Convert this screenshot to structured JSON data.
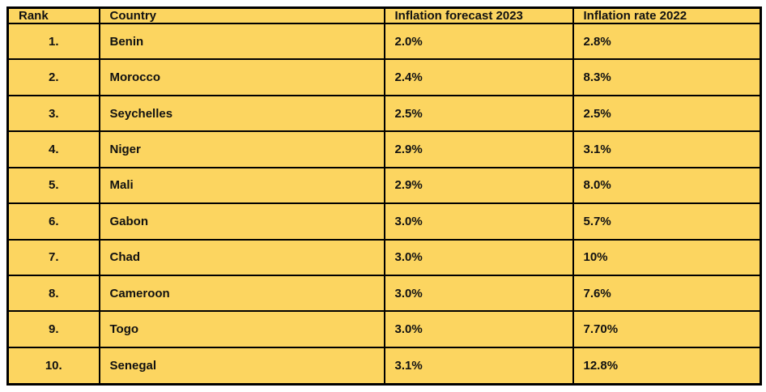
{
  "colors": {
    "cell_background": "#FCD560",
    "border": "#000000",
    "text": "#111111",
    "page_background": "#FFFFFF"
  },
  "table": {
    "columns": [
      {
        "key": "rank",
        "label": "Rank"
      },
      {
        "key": "country",
        "label": "Country"
      },
      {
        "key": "forecast2023",
        "label": "Inflation forecast 2023"
      },
      {
        "key": "rate2022",
        "label": "Inflation rate 2022"
      }
    ],
    "rows": [
      {
        "rank": "1.",
        "country": "Benin",
        "forecast2023": "2.0%",
        "rate2022": "2.8%"
      },
      {
        "rank": "2.",
        "country": "Morocco",
        "forecast2023": "2.4%",
        "rate2022": "8.3%"
      },
      {
        "rank": "3.",
        "country": "Seychelles",
        "forecast2023": "2.5%",
        "rate2022": "2.5%"
      },
      {
        "rank": "4.",
        "country": "Niger",
        "forecast2023": "2.9%",
        "rate2022": "3.1%"
      },
      {
        "rank": "5.",
        "country": "Mali",
        "forecast2023": "2.9%",
        "rate2022": "8.0%"
      },
      {
        "rank": "6.",
        "country": "Gabon",
        "forecast2023": "3.0%",
        "rate2022": "5.7%"
      },
      {
        "rank": "7.",
        "country": "Chad",
        "forecast2023": "3.0%",
        "rate2022": "10%"
      },
      {
        "rank": "8.",
        "country": "Cameroon",
        "forecast2023": "3.0%",
        "rate2022": "7.6%"
      },
      {
        "rank": "9.",
        "country": "Togo",
        "forecast2023": "3.0%",
        "rate2022": "7.70%"
      },
      {
        "rank": "10.",
        "country": "Senegal",
        "forecast2023": "3.1%",
        "rate2022": "12.8%"
      }
    ]
  },
  "chart_data": {
    "type": "table",
    "title": "",
    "columns": [
      "Rank",
      "Country",
      "Inflation forecast 2023",
      "Inflation rate 2022"
    ],
    "rows": [
      [
        "1.",
        "Benin",
        "2.0%",
        "2.8%"
      ],
      [
        "2.",
        "Morocco",
        "2.4%",
        "8.3%"
      ],
      [
        "3.",
        "Seychelles",
        "2.5%",
        "2.5%"
      ],
      [
        "4.",
        "Niger",
        "2.9%",
        "3.1%"
      ],
      [
        "5.",
        "Mali",
        "2.9%",
        "8.0%"
      ],
      [
        "6.",
        "Gabon",
        "3.0%",
        "5.7%"
      ],
      [
        "7.",
        "Chad",
        "3.0%",
        "10%"
      ],
      [
        "8.",
        "Cameroon",
        "3.0%",
        "7.6%"
      ],
      [
        "9.",
        "Togo",
        "3.0%",
        "7.70%"
      ],
      [
        "10.",
        "Senegal",
        "3.1%",
        "12.8%"
      ]
    ],
    "series": [
      {
        "name": "Inflation forecast 2023",
        "values": [
          2.0,
          2.4,
          2.5,
          2.9,
          2.9,
          3.0,
          3.0,
          3.0,
          3.0,
          3.1
        ]
      },
      {
        "name": "Inflation rate 2022",
        "values": [
          2.8,
          8.3,
          2.5,
          3.1,
          8.0,
          5.7,
          10.0,
          7.6,
          7.7,
          12.8
        ]
      }
    ],
    "categories": [
      "Benin",
      "Morocco",
      "Seychelles",
      "Niger",
      "Mali",
      "Gabon",
      "Chad",
      "Cameroon",
      "Togo",
      "Senegal"
    ]
  }
}
